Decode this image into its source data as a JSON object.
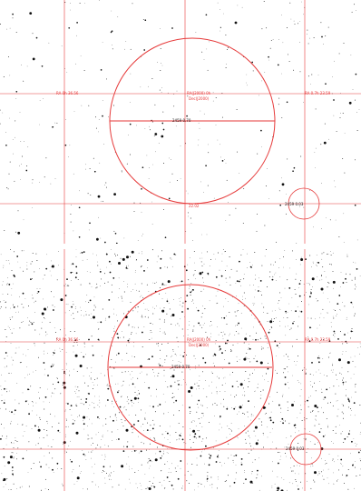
{
  "colors": {
    "background": "#ffffff",
    "overlay": "#e63a3a",
    "stars": "#111111"
  },
  "panels": [
    {
      "id": "top",
      "labels": {
        "left": "RA 0h 36.56",
        "center_top": "RA(J2000) 0h",
        "center_sub": "Dec(J2000)",
        "right": "RA 0.7h 23.59",
        "diameter": "2459 0.70",
        "bottom": "22.02",
        "small_circle": "2459 0.03"
      }
    },
    {
      "id": "bottom",
      "labels": {
        "left": "RA 0h 36.56",
        "center_top": "RA(J2000) 0h",
        "center_sub": "Dec(J2000)",
        "right": "RA 0.7h 23.59",
        "diameter": "2459 0.70",
        "small_circle": "2459 0.03"
      }
    }
  ]
}
